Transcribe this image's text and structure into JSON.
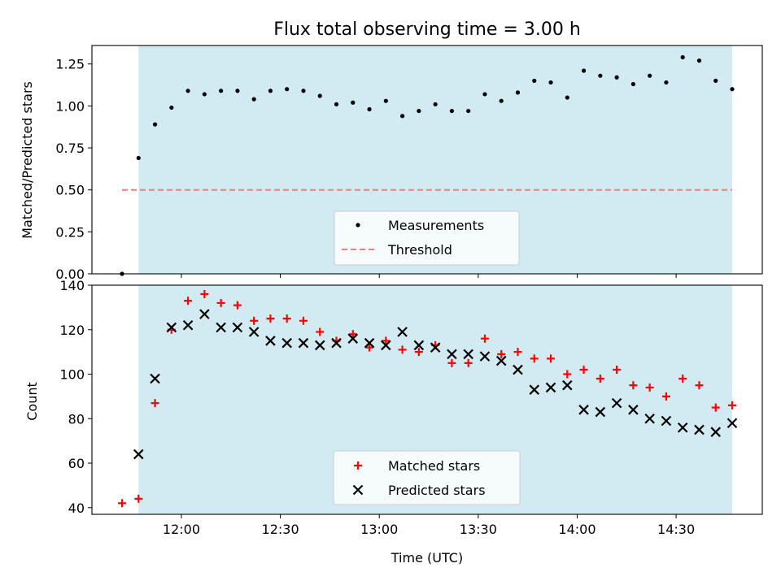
{
  "chart_data": [
    {
      "type": "scatter",
      "title": "Flux total observing time = 3.00 h",
      "xlabel": "",
      "ylabel": "Matched/Predicted stars",
      "ylim": [
        0,
        1.36
      ],
      "yticks": [
        "0.00",
        "0.25",
        "0.50",
        "0.75",
        "1.00",
        "1.25"
      ],
      "shaded_region": [
        "11:47",
        "14:47"
      ],
      "shade_color": "#add8e6",
      "threshold": {
        "value": 0.5,
        "from": "11:42",
        "to": "14:47",
        "label": "Threshold",
        "color": "#f08080"
      },
      "series": [
        {
          "name": "Measurements",
          "marker": "dot",
          "color": "#000000",
          "x": [
            "11:42",
            "11:47",
            "11:52",
            "11:57",
            "12:02",
            "12:07",
            "12:12",
            "12:17",
            "12:22",
            "12:27",
            "12:32",
            "12:37",
            "12:42",
            "12:47",
            "12:52",
            "12:57",
            "13:02",
            "13:07",
            "13:12",
            "13:17",
            "13:22",
            "13:27",
            "13:32",
            "13:37",
            "13:42",
            "13:47",
            "13:52",
            "13:57",
            "14:02",
            "14:07",
            "14:12",
            "14:17",
            "14:22",
            "14:27",
            "14:32",
            "14:37",
            "14:42",
            "14:47"
          ],
          "values": [
            0.0,
            0.69,
            0.89,
            0.99,
            1.09,
            1.07,
            1.09,
            1.09,
            1.04,
            1.09,
            1.1,
            1.09,
            1.06,
            1.01,
            1.02,
            0.98,
            1.03,
            0.94,
            0.97,
            1.01,
            0.97,
            0.97,
            1.07,
            1.03,
            1.08,
            1.15,
            1.14,
            1.05,
            1.21,
            1.18,
            1.17,
            1.13,
            1.18,
            1.14,
            1.29,
            1.27,
            1.15,
            1.1
          ]
        }
      ],
      "legend": "lower-center"
    },
    {
      "type": "scatter",
      "xlabel": "Time (UTC)",
      "ylabel": "Count",
      "ylim": [
        37,
        140
      ],
      "yticks": [
        "40",
        "60",
        "80",
        "100",
        "120",
        "140"
      ],
      "xticks": [
        "12:00",
        "12:30",
        "13:00",
        "13:30",
        "14:00",
        "14:30"
      ],
      "shaded_region": [
        "11:47",
        "14:47"
      ],
      "shade_color": "#add8e6",
      "x": [
        "11:42",
        "11:47",
        "11:52",
        "11:57",
        "12:02",
        "12:07",
        "12:12",
        "12:17",
        "12:22",
        "12:27",
        "12:32",
        "12:37",
        "12:42",
        "12:47",
        "12:52",
        "12:57",
        "13:02",
        "13:07",
        "13:12",
        "13:17",
        "13:22",
        "13:27",
        "13:32",
        "13:37",
        "13:42",
        "13:47",
        "13:52",
        "13:57",
        "14:02",
        "14:07",
        "14:12",
        "14:17",
        "14:22",
        "14:27",
        "14:32",
        "14:37",
        "14:42",
        "14:47"
      ],
      "series": [
        {
          "name": "Matched stars",
          "marker": "plus",
          "color": "#ff0000",
          "values": [
            42,
            44,
            87,
            120,
            133,
            136,
            132,
            131,
            124,
            125,
            125,
            124,
            119,
            115,
            118,
            112,
            115,
            111,
            110,
            113,
            105,
            105,
            116,
            109,
            110,
            107,
            107,
            100,
            102,
            98,
            102,
            95,
            94,
            90,
            98,
            95,
            85,
            86
          ]
        },
        {
          "name": "Predicted stars",
          "marker": "x",
          "color": "#000000",
          "values": [
            null,
            64,
            98,
            121,
            122,
            127,
            121,
            121,
            119,
            115,
            114,
            114,
            113,
            114,
            116,
            114,
            113,
            119,
            113,
            112,
            109,
            109,
            108,
            106,
            102,
            93,
            94,
            95,
            84,
            83,
            87,
            84,
            80,
            79,
            76,
            75,
            74,
            78
          ]
        }
      ],
      "legend": "lower-center"
    }
  ]
}
